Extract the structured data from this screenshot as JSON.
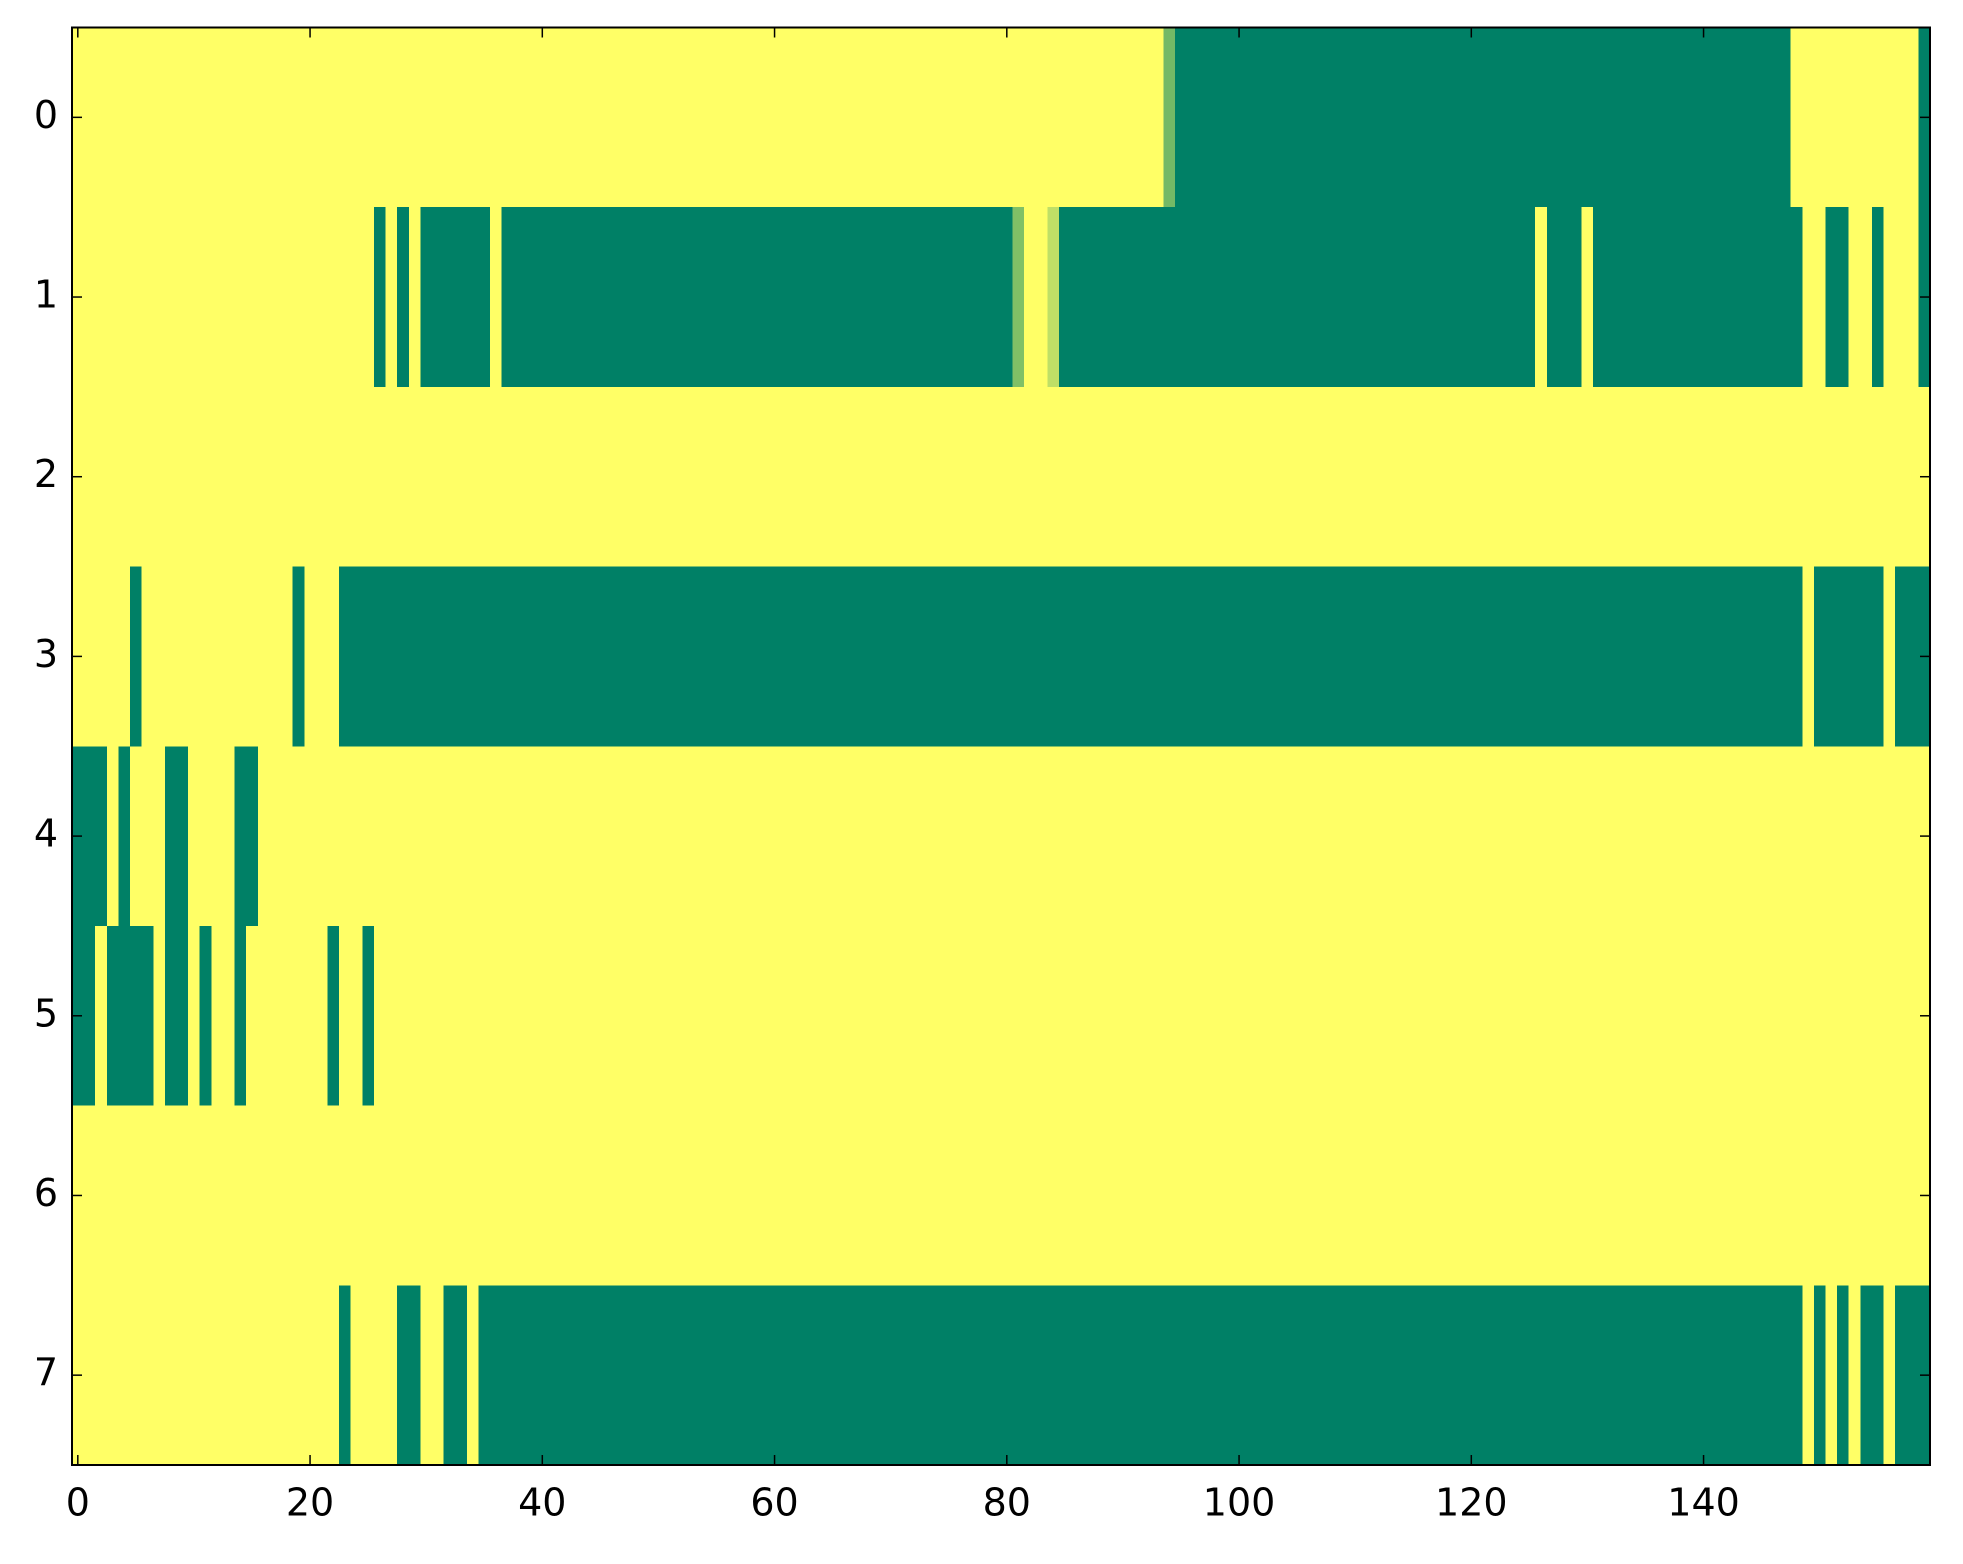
{
  "chart_data": {
    "type": "heatmap",
    "colormap": [
      "#008066",
      "#ffff66"
    ],
    "zlim": [
      0,
      1
    ],
    "xlim": [
      -0.5,
      159.5
    ],
    "ylim": [
      7.5,
      -0.5
    ],
    "xticks": [
      0,
      20,
      40,
      60,
      80,
      100,
      120,
      140
    ],
    "yticks": [
      0,
      1,
      2,
      3,
      4,
      5,
      6,
      7
    ],
    "z": [
      [
        1,
        1,
        1,
        1,
        1,
        1,
        1,
        1,
        1,
        1,
        1,
        1,
        1,
        1,
        1,
        1,
        1,
        1,
        1,
        1,
        1,
        1,
        1,
        1,
        1,
        1,
        1,
        1,
        1,
        1,
        1,
        1,
        1,
        1,
        1,
        1,
        1,
        1,
        1,
        1,
        1,
        1,
        1,
        1,
        1,
        1,
        1,
        1,
        1,
        1,
        1,
        1,
        1,
        1,
        1,
        1,
        1,
        1,
        1,
        1,
        1,
        1,
        1,
        1,
        1,
        1,
        1,
        1,
        1,
        1,
        1,
        1,
        1,
        1,
        1,
        1,
        1,
        1,
        1,
        1,
        1,
        1,
        1,
        1,
        1,
        1,
        1,
        1,
        1,
        1,
        1,
        1,
        1,
        1,
        0.45,
        0,
        0,
        0,
        0,
        0,
        0,
        0,
        0,
        0,
        0,
        0,
        0,
        0,
        0,
        0,
        0,
        0,
        0,
        0,
        0,
        0,
        0,
        0,
        0,
        0,
        0,
        0,
        0,
        0,
        0,
        0,
        0,
        0,
        0,
        0,
        0,
        0,
        0,
        0,
        0,
        0,
        0,
        0,
        0,
        0,
        0,
        0,
        0,
        0,
        0,
        0,
        0,
        0,
        1,
        1,
        1,
        1,
        1,
        1,
        1,
        1,
        1,
        1,
        1,
        0
      ],
      [
        1,
        1,
        1,
        1,
        1,
        1,
        1,
        1,
        1,
        1,
        1,
        1,
        1,
        1,
        1,
        1,
        1,
        1,
        1,
        1,
        1,
        1,
        1,
        1,
        1,
        1,
        0,
        1,
        0,
        1,
        0,
        0,
        0,
        0,
        0,
        0,
        1,
        0,
        0,
        0,
        0,
        0,
        0,
        0,
        0,
        0,
        0,
        0,
        0,
        0,
        0,
        0,
        0,
        0,
        0,
        0,
        0,
        0,
        0,
        0,
        0,
        0,
        0,
        0,
        0,
        0,
        0,
        0,
        0,
        0,
        0,
        0,
        0,
        0,
        0,
        0,
        0,
        0,
        0,
        0,
        0,
        0.5,
        1,
        1,
        0.75,
        0,
        0,
        0,
        0,
        0,
        0,
        0,
        0,
        0,
        0,
        0,
        0,
        0,
        0,
        0,
        0,
        0,
        0,
        0,
        0,
        0,
        0,
        0,
        0,
        0,
        0,
        0,
        0,
        0,
        0,
        0,
        0,
        0,
        0,
        0,
        0,
        0,
        0,
        0,
        0,
        0,
        1,
        0,
        0,
        0,
        1,
        0,
        0,
        0,
        0,
        0,
        0,
        0,
        0,
        0,
        0,
        0,
        0,
        0,
        0,
        0,
        0,
        0,
        0,
        1,
        1,
        0,
        0,
        1,
        1,
        0,
        1,
        1,
        1,
        0
      ],
      [
        1,
        1,
        1,
        1,
        1,
        1,
        1,
        1,
        1,
        1,
        1,
        1,
        1,
        1,
        1,
        1,
        1,
        1,
        1,
        1,
        1,
        1,
        1,
        1,
        1,
        1,
        1,
        1,
        1,
        1,
        1,
        1,
        1,
        1,
        1,
        1,
        1,
        1,
        1,
        1,
        1,
        1,
        1,
        1,
        1,
        1,
        1,
        1,
        1,
        1,
        1,
        1,
        1,
        1,
        1,
        1,
        1,
        1,
        1,
        1,
        1,
        1,
        1,
        1,
        1,
        1,
        1,
        1,
        1,
        1,
        1,
        1,
        1,
        1,
        1,
        1,
        1,
        1,
        1,
        1,
        1,
        1,
        1,
        1,
        1,
        1,
        1,
        1,
        1,
        1,
        1,
        1,
        1,
        1,
        1,
        1,
        1,
        1,
        1,
        1,
        1,
        1,
        1,
        1,
        1,
        1,
        1,
        1,
        1,
        1,
        1,
        1,
        1,
        1,
        1,
        1,
        1,
        1,
        1,
        1,
        1,
        1,
        1,
        1,
        1,
        1,
        1,
        1,
        1,
        1,
        1,
        1,
        1,
        1,
        1,
        1,
        1,
        1,
        1,
        1,
        1,
        1,
        1,
        1,
        1,
        1,
        1,
        1,
        1,
        1,
        1,
        1,
        1,
        1,
        1,
        1,
        1,
        1,
        1,
        1
      ],
      [
        1,
        1,
        1,
        1,
        1,
        0,
        1,
        1,
        1,
        1,
        1,
        1,
        1,
        1,
        1,
        1,
        1,
        1,
        1,
        0,
        1,
        1,
        1,
        0,
        0,
        0,
        0,
        0,
        0,
        0,
        0,
        0,
        0,
        0,
        0,
        0,
        0,
        0,
        0,
        0,
        0,
        0,
        0,
        0,
        0,
        0,
        0,
        0,
        0,
        0,
        0,
        0,
        0,
        0,
        0,
        0,
        0,
        0,
        0,
        0,
        0,
        0,
        0,
        0,
        0,
        0,
        0,
        0,
        0,
        0,
        0,
        0,
        0,
        0,
        0,
        0,
        0,
        0,
        0,
        0,
        0,
        0,
        0,
        0,
        0,
        0,
        0,
        0,
        0,
        0,
        0,
        0,
        0,
        0,
        0,
        0,
        0,
        0,
        0,
        0,
        0,
        0,
        0,
        0,
        0,
        0,
        0,
        0,
        0,
        0,
        0,
        0,
        0,
        0,
        0,
        0,
        0,
        0,
        0,
        0,
        0,
        0,
        0,
        0,
        0,
        0,
        0,
        0,
        0,
        0,
        0,
        0,
        0,
        0,
        0,
        0,
        0,
        0,
        0,
        0,
        0,
        0,
        0,
        0,
        0,
        0,
        0,
        0,
        0,
        1,
        0,
        0,
        0,
        0,
        0,
        0,
        1,
        0,
        0,
        0
      ],
      [
        0,
        0,
        0,
        1,
        0,
        1,
        1,
        1,
        0,
        0,
        1,
        1,
        1,
        1,
        0,
        0,
        1,
        1,
        1,
        1,
        1,
        1,
        1,
        1,
        1,
        1,
        1,
        1,
        1,
        1,
        1,
        1,
        1,
        1,
        1,
        1,
        1,
        1,
        1,
        1,
        1,
        1,
        1,
        1,
        1,
        1,
        1,
        1,
        1,
        1,
        1,
        1,
        1,
        1,
        1,
        1,
        1,
        1,
        1,
        1,
        1,
        1,
        1,
        1,
        1,
        1,
        1,
        1,
        1,
        1,
        1,
        1,
        1,
        1,
        1,
        1,
        1,
        1,
        1,
        1,
        1,
        1,
        1,
        1,
        1,
        1,
        1,
        1,
        1,
        1,
        1,
        1,
        1,
        1,
        1,
        1,
        1,
        1,
        1,
        1,
        1,
        1,
        1,
        1,
        1,
        1,
        1,
        1,
        1,
        1,
        1,
        1,
        1,
        1,
        1,
        1,
        1,
        1,
        1,
        1,
        1,
        1,
        1,
        1,
        1,
        1,
        1,
        1,
        1,
        1,
        1,
        1,
        1,
        1,
        1,
        1,
        1,
        1,
        1,
        1,
        1,
        1,
        1,
        1,
        1,
        1,
        1,
        1,
        1,
        1,
        1,
        1,
        1,
        1,
        1,
        1,
        1,
        1,
        1,
        1
      ],
      [
        0,
        0,
        1,
        0,
        0,
        0,
        0,
        1,
        0,
        0,
        1,
        0,
        1,
        1,
        0,
        1,
        1,
        1,
        1,
        1,
        1,
        1,
        0,
        1,
        1,
        0,
        1,
        1,
        1,
        1,
        1,
        1,
        1,
        1,
        1,
        1,
        1,
        1,
        1,
        1,
        1,
        1,
        1,
        1,
        1,
        1,
        1,
        1,
        1,
        1,
        1,
        1,
        1,
        1,
        1,
        1,
        1,
        1,
        1,
        1,
        1,
        1,
        1,
        1,
        1,
        1,
        1,
        1,
        1,
        1,
        1,
        1,
        1,
        1,
        1,
        1,
        1,
        1,
        1,
        1,
        1,
        1,
        1,
        1,
        1,
        1,
        1,
        1,
        1,
        1,
        1,
        1,
        1,
        1,
        1,
        1,
        1,
        1,
        1,
        1,
        1,
        1,
        1,
        1,
        1,
        1,
        1,
        1,
        1,
        1,
        1,
        1,
        1,
        1,
        1,
        1,
        1,
        1,
        1,
        1,
        1,
        1,
        1,
        1,
        1,
        1,
        1,
        1,
        1,
        1,
        1,
        1,
        1,
        1,
        1,
        1,
        1,
        1,
        1,
        1,
        1,
        1,
        1,
        1,
        1,
        1,
        1,
        1,
        1,
        1,
        1,
        1,
        1,
        1,
        1,
        1,
        1,
        1,
        1,
        1
      ],
      [
        1,
        1,
        1,
        1,
        1,
        1,
        1,
        1,
        1,
        1,
        1,
        1,
        1,
        1,
        1,
        1,
        1,
        1,
        1,
        1,
        1,
        1,
        1,
        1,
        1,
        1,
        1,
        1,
        1,
        1,
        1,
        1,
        1,
        1,
        1,
        1,
        1,
        1,
        1,
        1,
        1,
        1,
        1,
        1,
        1,
        1,
        1,
        1,
        1,
        1,
        1,
        1,
        1,
        1,
        1,
        1,
        1,
        1,
        1,
        1,
        1,
        1,
        1,
        1,
        1,
        1,
        1,
        1,
        1,
        1,
        1,
        1,
        1,
        1,
        1,
        1,
        1,
        1,
        1,
        1,
        1,
        1,
        1,
        1,
        1,
        1,
        1,
        1,
        1,
        1,
        1,
        1,
        1,
        1,
        1,
        1,
        1,
        1,
        1,
        1,
        1,
        1,
        1,
        1,
        1,
        1,
        1,
        1,
        1,
        1,
        1,
        1,
        1,
        1,
        1,
        1,
        1,
        1,
        1,
        1,
        1,
        1,
        1,
        1,
        1,
        1,
        1,
        1,
        1,
        1,
        1,
        1,
        1,
        1,
        1,
        1,
        1,
        1,
        1,
        1,
        1,
        1,
        1,
        1,
        1,
        1,
        1,
        1,
        1,
        1,
        1,
        1,
        1,
        1,
        1,
        1,
        1,
        1,
        1,
        1
      ],
      [
        1,
        1,
        1,
        1,
        1,
        1,
        1,
        1,
        1,
        1,
        1,
        1,
        1,
        1,
        1,
        1,
        1,
        1,
        1,
        1,
        1,
        1,
        1,
        0,
        1,
        1,
        1,
        1,
        0,
        0,
        1,
        1,
        0,
        0,
        1,
        0,
        0,
        0,
        0,
        0,
        0,
        0,
        0,
        0,
        0,
        0,
        0,
        0,
        0,
        0,
        0,
        0,
        0,
        0,
        0,
        0,
        0,
        0,
        0,
        0,
        0,
        0,
        0,
        0,
        0,
        0,
        0,
        0,
        0,
        0,
        0,
        0,
        0,
        0,
        0,
        0,
        0,
        0,
        0,
        0,
        0,
        0,
        0,
        0,
        0,
        0,
        0,
        0,
        0,
        0,
        0,
        0,
        0,
        0,
        0,
        0,
        0,
        0,
        0,
        0,
        0,
        0,
        0,
        0,
        0,
        0,
        0,
        0,
        0,
        0,
        0,
        0,
        0,
        0,
        0,
        0,
        0,
        0,
        0,
        0,
        0,
        0,
        0,
        0,
        0,
        0,
        0,
        0,
        0,
        0,
        0,
        0,
        0,
        0,
        0,
        0,
        0,
        0,
        0,
        0,
        0,
        0,
        0,
        0,
        0,
        0,
        0,
        0,
        0,
        1,
        0,
        1,
        0,
        1,
        0,
        0,
        1,
        0,
        0,
        0
      ]
    ]
  }
}
